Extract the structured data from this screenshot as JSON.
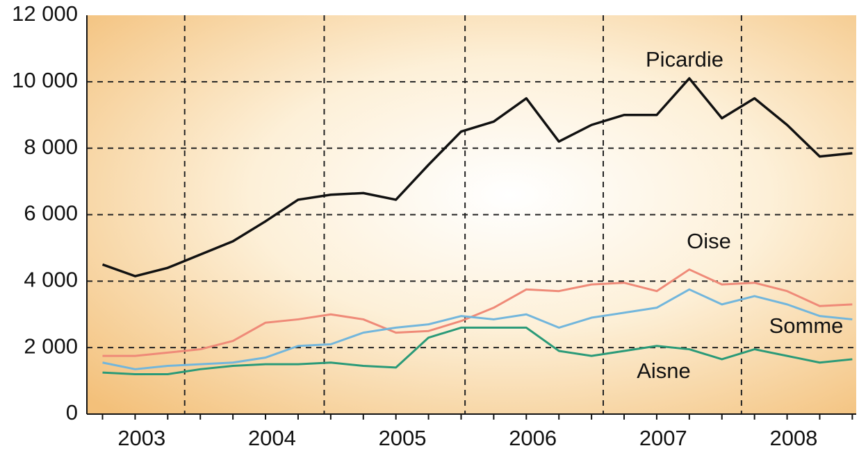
{
  "chart_data": {
    "type": "line",
    "x": [
      2003.0,
      2003.25,
      2003.5,
      2003.75,
      2004.0,
      2004.25,
      2004.5,
      2004.75,
      2005.0,
      2005.25,
      2005.5,
      2005.75,
      2006.0,
      2006.25,
      2006.5,
      2006.75,
      2007.0,
      2007.25,
      2007.5,
      2007.75,
      2008.0,
      2008.25,
      2008.5,
      2008.75
    ],
    "series": [
      {
        "name": "Picardie",
        "color": "#111111",
        "values": [
          4500,
          4150,
          4400,
          4800,
          5200,
          5800,
          6450,
          6600,
          6650,
          6450,
          7500,
          8500,
          8800,
          9500,
          8200,
          8700,
          9000,
          9000,
          10100,
          8900,
          9500,
          8700,
          7750,
          7850
        ]
      },
      {
        "name": "Oise",
        "color": "#ef8a78",
        "values": [
          1750,
          1750,
          1850,
          1950,
          2200,
          2750,
          2850,
          3000,
          2850,
          2450,
          2500,
          2800,
          3200,
          3750,
          3700,
          3900,
          3950,
          3700,
          4350,
          3900,
          3950,
          3700,
          3250,
          3300
        ]
      },
      {
        "name": "Somme",
        "color": "#72b6dc",
        "values": [
          1550,
          1350,
          1450,
          1500,
          1550,
          1700,
          2050,
          2100,
          2450,
          2600,
          2700,
          2950,
          2850,
          3000,
          2600,
          2900,
          3050,
          3200,
          3750,
          3300,
          3550,
          3300,
          2950,
          2850
        ]
      },
      {
        "name": "Aisne",
        "color": "#2a9a78",
        "values": [
          1250,
          1200,
          1200,
          1350,
          1450,
          1500,
          1500,
          1550,
          1450,
          1400,
          2300,
          2600,
          2600,
          2600,
          1900,
          1750,
          1900,
          2050,
          1950,
          1650,
          1950,
          1750,
          1550,
          1650
        ]
      }
    ],
    "xlim": [
      2002.88,
      2008.78
    ],
    "xticks": [
      {
        "value": 2003.3,
        "label": "2003"
      },
      {
        "value": 2004.3,
        "label": "2004"
      },
      {
        "value": 2005.3,
        "label": "2005"
      },
      {
        "value": 2006.3,
        "label": "2006"
      },
      {
        "value": 2007.3,
        "label": "2007"
      },
      {
        "value": 2008.3,
        "label": "2008"
      }
    ],
    "xgrid": [
      2003.63,
      2004.7,
      2005.78,
      2006.84,
      2007.9
    ],
    "ylim": [
      0,
      12000
    ],
    "yticks": [
      0,
      {
        "value": 2000,
        "label": "2 000"
      },
      {
        "value": 4000,
        "label": "4 000"
      },
      {
        "value": 6000,
        "label": "6 000"
      },
      {
        "value": 8000,
        "label": "8 000"
      },
      {
        "value": 10000,
        "label": "10 000"
      },
      {
        "value": 12000,
        "label": "12 000"
      }
    ],
    "grid": true
  }
}
